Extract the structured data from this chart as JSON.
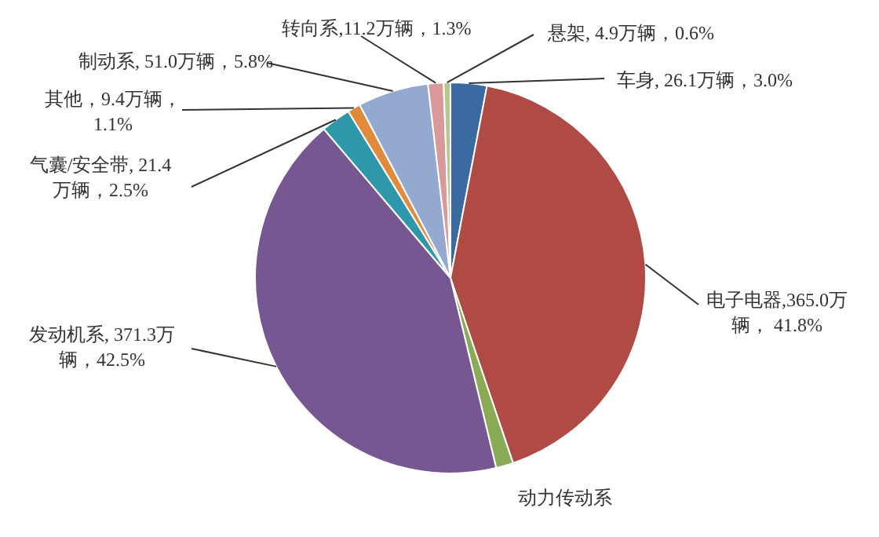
{
  "chart_data": {
    "type": "pie",
    "categories": [
      "车身",
      "电子电器",
      "动力传动系",
      "发动机系",
      "气囊/安全带",
      "其他",
      "制动系",
      "转向系",
      "悬架"
    ],
    "values": [
      26.1,
      365.0,
      12.5,
      371.3,
      21.4,
      9.4,
      51.0,
      11.2,
      4.9
    ],
    "colors": [
      "#3b6aa0",
      "#b04a45",
      "#8aaa55",
      "#765791",
      "#2f97aa",
      "#e08a3b",
      "#93a9d0",
      "#d9999a",
      "#b5c98f"
    ],
    "value_labels": [
      ", 26.1万辆，3.0%",
      ",365.0万辆， 41.8%",
      null,
      ", 371.3万辆，42.5%",
      ", 21.4万辆，2.5%",
      "，9.4万辆，1.1%",
      ", 51.0万辆，5.8%",
      ",11.2万辆，1.3%",
      ", 4.9万辆，0.6%"
    ],
    "legend": false
  }
}
